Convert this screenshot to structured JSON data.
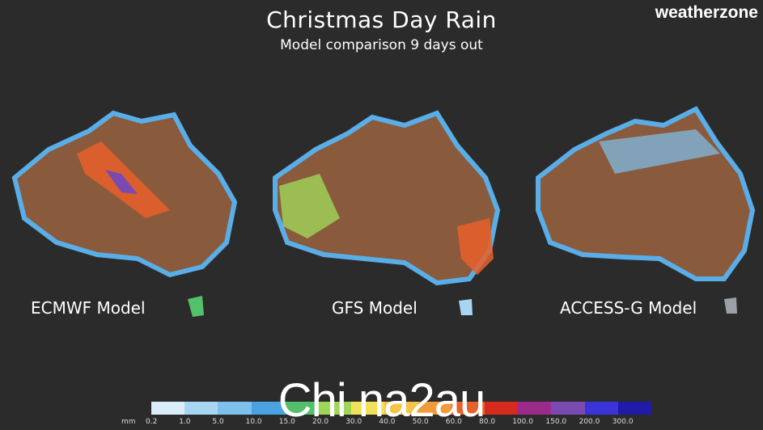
{
  "title": "Christmas Day Rain",
  "subtitle": "Model comparison 9 days out",
  "logo": {
    "text_a": "weather",
    "text_b": "zone"
  },
  "maps": [
    {
      "label": "ECMWF Model"
    },
    {
      "label": "GFS Model"
    },
    {
      "label": "ACCESS-G Model"
    }
  ],
  "legend": {
    "unit": "mm",
    "ticks": [
      "0.2",
      "1.0",
      "5.0",
      "10.0",
      "15.0",
      "20.0",
      "30.0",
      "40.0",
      "50.0",
      "60.0",
      "80.0",
      "100.0",
      "150.0",
      "200.0",
      "300.0"
    ],
    "colors": [
      "#d9eef9",
      "#a8d6f2",
      "#7dc0ec",
      "#4aa3e0",
      "#53c06b",
      "#9fd65a",
      "#f0e05a",
      "#f4c44a",
      "#f09a3a",
      "#e8602a",
      "#d62a1e",
      "#9a2b8a",
      "#7a4ab0",
      "#3a34d8",
      "#1f1aa8"
    ]
  },
  "watermark": "Chi na2au"
}
